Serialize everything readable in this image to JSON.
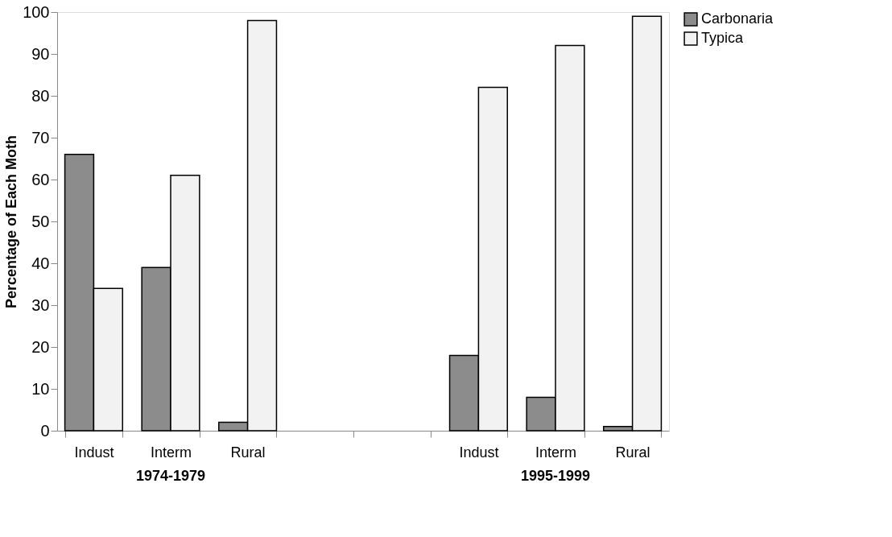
{
  "chart_data": {
    "type": "bar",
    "ylabel": "Percentage of Each Moth",
    "categories": [
      "Indust",
      "Interm",
      "Rural",
      null,
      null,
      "Indust",
      "Interm",
      "Rural"
    ],
    "series": [
      {
        "name": "Carbonaria",
        "color": "#8c8c8c",
        "values": [
          66,
          39,
          2,
          null,
          null,
          18,
          8,
          1
        ]
      },
      {
        "name": "Typica",
        "color": "#f2f2f2",
        "values": [
          34,
          61,
          98,
          null,
          null,
          82,
          92,
          99
        ]
      }
    ],
    "ylim": [
      0,
      100
    ],
    "yticks": [
      0,
      10,
      20,
      30,
      40,
      50,
      60,
      70,
      80,
      90,
      100
    ],
    "annotations": [
      "1974-1979",
      "1995-1999"
    ],
    "grid": false,
    "legend": "right"
  }
}
